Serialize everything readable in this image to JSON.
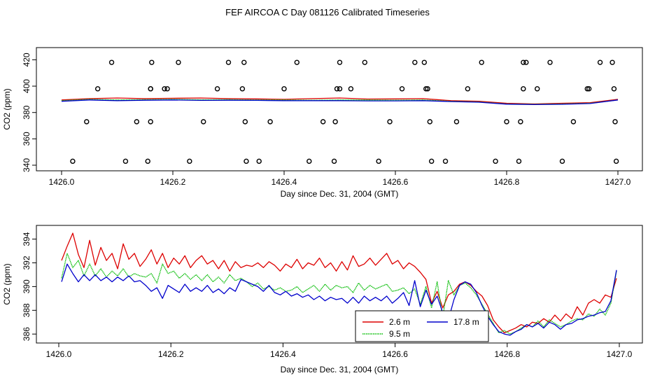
{
  "title": "FEF AIRCOA C  Day 081126  Calibrated Timeseries",
  "colors": {
    "2.6 m": "#dd0000",
    "9.5 m": "#00bb00",
    "17.8 m": "#0000cc"
  },
  "chart_data": [
    {
      "type": "line",
      "xlabel": "Day since Dec. 31, 2004 (GMT)",
      "ylabel": "CO2 (ppm)",
      "xlim": [
        1426.0,
        1427.0
      ],
      "ylim": [
        340,
        425
      ],
      "xticks": [
        1426.0,
        1426.2,
        1426.4,
        1426.6,
        1426.8,
        1427.0
      ],
      "xtick_labels": [
        "1426.0",
        "1426.2",
        "1426.4",
        "1426.6",
        "1426.8",
        "1427.0"
      ],
      "yticks": [
        340,
        360,
        380,
        400,
        420
      ],
      "ytick_labels": [
        "340",
        "360",
        "380",
        "400",
        "420"
      ],
      "series": [
        {
          "name": "2.6 m",
          "x": [
            1426.0,
            1426.05,
            1426.1,
            1426.15,
            1426.2,
            1426.25,
            1426.3,
            1426.35,
            1426.4,
            1426.45,
            1426.5,
            1426.55,
            1426.6,
            1426.65,
            1426.7,
            1426.75,
            1426.8,
            1426.85,
            1426.9,
            1426.95,
            1427.0
          ],
          "y": [
            389.5,
            390.5,
            391,
            390.5,
            390.8,
            391,
            390.5,
            390.3,
            390,
            390.5,
            391,
            390.2,
            390.3,
            390.5,
            389,
            388.5,
            387,
            386.5,
            387,
            387.5,
            390
          ]
        },
        {
          "name": "9.5 m",
          "x": [
            1426.0,
            1426.05,
            1426.1,
            1426.15,
            1426.2,
            1426.25,
            1426.3,
            1426.35,
            1426.4,
            1426.45,
            1426.5,
            1426.55,
            1426.6,
            1426.65,
            1426.7,
            1426.75,
            1426.8,
            1426.85,
            1426.9,
            1426.95,
            1427.0
          ],
          "y": [
            389,
            390,
            389.5,
            389.8,
            390,
            389.6,
            389.8,
            389.5,
            389.5,
            389.3,
            389.5,
            389.5,
            389.3,
            389.5,
            388.5,
            388,
            386.5,
            386.2,
            386.5,
            387,
            389.5
          ]
        },
        {
          "name": "17.8 m",
          "x": [
            1426.0,
            1426.05,
            1426.1,
            1426.15,
            1426.2,
            1426.25,
            1426.3,
            1426.35,
            1426.4,
            1426.45,
            1426.5,
            1426.55,
            1426.6,
            1426.65,
            1426.7,
            1426.75,
            1426.8,
            1426.85,
            1426.9,
            1426.95,
            1427.0
          ],
          "y": [
            388.5,
            389.5,
            389,
            389.3,
            389.5,
            389.2,
            389.3,
            389.2,
            389,
            389,
            389,
            388.8,
            388.8,
            389,
            388.3,
            387.8,
            386.3,
            386,
            386.2,
            386.8,
            389.5
          ]
        }
      ],
      "calibration_points": {
        "x": [
          1426.02,
          1426.045,
          1426.065,
          1426.09,
          1426.115,
          1426.135,
          1426.155,
          1426.16,
          1426.16,
          1426.16,
          1426.162,
          1426.185,
          1426.19,
          1426.21,
          1426.23,
          1426.255,
          1426.28,
          1426.3,
          1426.325,
          1426.328,
          1426.33,
          1426.332,
          1426.355,
          1426.375,
          1426.4,
          1426.423,
          1426.445,
          1426.47,
          1426.49,
          1426.492,
          1426.495,
          1426.5,
          1426.5,
          1426.52,
          1426.545,
          1426.57,
          1426.59,
          1426.612,
          1426.635,
          1426.652,
          1426.655,
          1426.658,
          1426.662,
          1426.665,
          1426.69,
          1426.71,
          1426.73,
          1426.755,
          1426.78,
          1426.8,
          1426.822,
          1426.825,
          1426.83,
          1426.83,
          1426.835,
          1426.855,
          1426.878,
          1426.9,
          1426.92,
          1426.945,
          1426.948,
          1426.968,
          1426.99,
          1426.993,
          1426.995,
          1426.997
        ],
        "y": [
          343,
          373,
          398,
          418,
          343,
          373,
          343,
          373,
          398,
          398,
          418,
          398,
          398,
          418,
          343,
          373,
          398,
          418,
          398,
          418,
          373,
          343,
          343,
          373,
          398,
          418,
          343,
          373,
          343,
          373,
          398,
          398,
          418,
          398,
          418,
          343,
          373,
          398,
          418,
          418,
          398,
          398,
          373,
          343,
          343,
          373,
          398,
          418,
          343,
          373,
          343,
          373,
          398,
          418,
          418,
          398,
          418,
          343,
          373,
          398,
          398,
          418,
          418,
          398,
          373,
          343
        ]
      }
    },
    {
      "type": "line",
      "xlabel": "Day since Dec. 31, 2004 (GMT)",
      "ylabel": "CO2 (ppm)",
      "xlim": [
        1426.0,
        1427.0
      ],
      "ylim": [
        385.6,
        394.8
      ],
      "xticks": [
        1426.0,
        1426.2,
        1426.4,
        1426.6,
        1426.8,
        1427.0
      ],
      "xtick_labels": [
        "1426.0",
        "1426.2",
        "1426.4",
        "1426.6",
        "1426.8",
        "1427.0"
      ],
      "yticks": [
        386,
        388,
        390,
        392,
        394
      ],
      "ytick_labels": [
        "386",
        "388",
        "390",
        "392",
        "394"
      ],
      "legend": {
        "placement": "bottom-center",
        "entries": [
          "2.6 m",
          "9.5 m",
          "17.8 m"
        ]
      },
      "series": [
        {
          "name": "2.6 m",
          "x": [
            1426.005,
            1426.015,
            1426.025,
            1426.035,
            1426.045,
            1426.055,
            1426.065,
            1426.075,
            1426.085,
            1426.095,
            1426.105,
            1426.115,
            1426.125,
            1426.135,
            1426.145,
            1426.155,
            1426.165,
            1426.175,
            1426.185,
            1426.195,
            1426.205,
            1426.215,
            1426.225,
            1426.235,
            1426.245,
            1426.255,
            1426.265,
            1426.275,
            1426.285,
            1426.295,
            1426.305,
            1426.315,
            1426.325,
            1426.335,
            1426.345,
            1426.355,
            1426.365,
            1426.375,
            1426.385,
            1426.395,
            1426.405,
            1426.415,
            1426.425,
            1426.435,
            1426.445,
            1426.455,
            1426.465,
            1426.475,
            1426.485,
            1426.495,
            1426.505,
            1426.515,
            1426.525,
            1426.535,
            1426.545,
            1426.555,
            1426.565,
            1426.575,
            1426.585,
            1426.595,
            1426.605,
            1426.615,
            1426.625,
            1426.635,
            1426.645,
            1426.655,
            1426.665,
            1426.675,
            1426.685,
            1426.695,
            1426.705,
            1426.715,
            1426.725,
            1426.735,
            1426.745,
            1426.755,
            1426.765,
            1426.775,
            1426.785,
            1426.795,
            1426.805,
            1426.815,
            1426.825,
            1426.835,
            1426.845,
            1426.855,
            1426.865,
            1426.875,
            1426.885,
            1426.895,
            1426.905,
            1426.915,
            1426.925,
            1426.935,
            1426.945,
            1426.955,
            1426.965,
            1426.975,
            1426.985,
            1426.995
          ],
          "y": [
            392.2,
            393.4,
            394.5,
            392.7,
            391.6,
            393.9,
            391.8,
            393.3,
            392.2,
            392.8,
            391.5,
            393.6,
            392.3,
            392.8,
            391.7,
            392.3,
            393.1,
            391.9,
            392.8,
            391.6,
            392.4,
            391.9,
            392.6,
            391.6,
            392.2,
            392.6,
            391.9,
            392.2,
            391.5,
            392.2,
            391.3,
            392.1,
            391.6,
            391.8,
            391.7,
            392,
            391.6,
            392.1,
            391.8,
            391.3,
            391.9,
            391.6,
            392.3,
            391.5,
            392,
            391.8,
            392.4,
            391.6,
            392,
            391.3,
            392.1,
            391.4,
            392.6,
            391.7,
            391.9,
            392.4,
            391.8,
            392.3,
            392.8,
            391.9,
            392.2,
            391.5,
            392,
            391.7,
            391.2,
            390.6,
            388.6,
            389.6,
            388.2,
            389.3,
            389.6,
            390.2,
            390.4,
            390.1,
            389.6,
            389.2,
            388.4,
            387.2,
            386.6,
            386.1,
            386.3,
            386.5,
            386.8,
            386.6,
            387,
            386.9,
            387.3,
            387,
            387.6,
            387.1,
            387.7,
            387.3,
            388.3,
            387.6,
            388.6,
            388.9,
            388.6,
            389.3,
            389.1,
            390.7
          ]
        },
        {
          "name": "9.5 m",
          "x": [
            1426.005,
            1426.015,
            1426.025,
            1426.035,
            1426.045,
            1426.055,
            1426.065,
            1426.075,
            1426.085,
            1426.095,
            1426.105,
            1426.115,
            1426.125,
            1426.135,
            1426.145,
            1426.155,
            1426.165,
            1426.175,
            1426.185,
            1426.195,
            1426.205,
            1426.215,
            1426.225,
            1426.235,
            1426.245,
            1426.255,
            1426.265,
            1426.275,
            1426.285,
            1426.295,
            1426.305,
            1426.315,
            1426.325,
            1426.335,
            1426.345,
            1426.355,
            1426.365,
            1426.375,
            1426.385,
            1426.395,
            1426.405,
            1426.415,
            1426.425,
            1426.435,
            1426.445,
            1426.455,
            1426.465,
            1426.475,
            1426.485,
            1426.495,
            1426.505,
            1426.515,
            1426.525,
            1426.535,
            1426.545,
            1426.555,
            1426.565,
            1426.575,
            1426.585,
            1426.595,
            1426.605,
            1426.615,
            1426.625,
            1426.635,
            1426.645,
            1426.655,
            1426.665,
            1426.675,
            1426.685,
            1426.695,
            1426.705,
            1426.715,
            1426.725,
            1426.735,
            1426.745,
            1426.755,
            1426.765,
            1426.775,
            1426.785,
            1426.795,
            1426.805,
            1426.815,
            1426.825,
            1426.835,
            1426.845,
            1426.855,
            1426.865,
            1426.875,
            1426.885,
            1426.895,
            1426.905,
            1426.915,
            1426.925,
            1426.935,
            1426.945,
            1426.955,
            1426.965,
            1426.975,
            1426.985,
            1426.995
          ],
          "y": [
            390.7,
            392.8,
            391.6,
            392.2,
            390.9,
            391.9,
            390.9,
            391.5,
            390.8,
            391.3,
            390.9,
            391.5,
            390.8,
            391.1,
            390.9,
            390.8,
            391.1,
            390.3,
            391.9,
            391.1,
            391.3,
            390.7,
            391.1,
            390.6,
            391,
            390.5,
            391,
            390.4,
            390.8,
            390.3,
            391,
            390.5,
            390.7,
            390.4,
            390,
            390.3,
            389.8,
            390,
            389.7,
            389.9,
            389.6,
            389.7,
            390,
            389.5,
            389.8,
            390.1,
            389.6,
            390.2,
            389.7,
            390.1,
            389.9,
            390,
            389.5,
            390.3,
            389.7,
            390.1,
            389.8,
            390,
            390.2,
            389.6,
            389.7,
            389.9,
            389.4,
            389.8,
            388.5,
            390,
            388.2,
            390.4,
            387.4,
            390.5,
            389.3,
            390.1,
            390.3,
            389.9,
            389.3,
            388.5,
            387.7,
            386.9,
            386.1,
            386.3,
            386,
            386.2,
            386.5,
            386.8,
            386.6,
            387.1,
            386.6,
            387.2,
            386.9,
            386.6,
            386.8,
            387.1,
            387.3,
            387.2,
            387.7,
            387.5,
            388.1,
            387.6,
            388.6,
            391.3
          ]
        },
        {
          "name": "17.8 m",
          "x": [
            1426.005,
            1426.015,
            1426.025,
            1426.035,
            1426.045,
            1426.055,
            1426.065,
            1426.075,
            1426.085,
            1426.095,
            1426.105,
            1426.115,
            1426.125,
            1426.135,
            1426.145,
            1426.155,
            1426.165,
            1426.175,
            1426.185,
            1426.195,
            1426.205,
            1426.215,
            1426.225,
            1426.235,
            1426.245,
            1426.255,
            1426.265,
            1426.275,
            1426.285,
            1426.295,
            1426.305,
            1426.315,
            1426.325,
            1426.335,
            1426.345,
            1426.355,
            1426.365,
            1426.375,
            1426.385,
            1426.395,
            1426.405,
            1426.415,
            1426.425,
            1426.435,
            1426.445,
            1426.455,
            1426.465,
            1426.475,
            1426.485,
            1426.495,
            1426.505,
            1426.515,
            1426.525,
            1426.535,
            1426.545,
            1426.555,
            1426.565,
            1426.575,
            1426.585,
            1426.595,
            1426.605,
            1426.615,
            1426.625,
            1426.635,
            1426.645,
            1426.655,
            1426.665,
            1426.675,
            1426.685,
            1426.695,
            1426.705,
            1426.715,
            1426.725,
            1426.735,
            1426.745,
            1426.755,
            1426.765,
            1426.775,
            1426.785,
            1426.795,
            1426.805,
            1426.815,
            1426.825,
            1426.835,
            1426.845,
            1426.855,
            1426.865,
            1426.875,
            1426.885,
            1426.895,
            1426.905,
            1426.915,
            1426.925,
            1426.935,
            1426.945,
            1426.955,
            1426.965,
            1426.975,
            1426.985,
            1426.995
          ],
          "y": [
            390.4,
            391.9,
            391.1,
            390.4,
            391,
            390.5,
            391,
            390.5,
            390.8,
            390.4,
            390.8,
            390.5,
            390.9,
            390.4,
            390.5,
            390.1,
            389.6,
            389.9,
            389,
            390.1,
            389.8,
            389.5,
            390.2,
            389.6,
            389.9,
            389.6,
            390.1,
            389.5,
            389.8,
            389.4,
            389.9,
            389.6,
            390.6,
            390.4,
            390.2,
            390,
            389.6,
            390.1,
            389.5,
            389.3,
            389.6,
            389.2,
            389.4,
            389.1,
            389.3,
            388.9,
            389.2,
            388.8,
            389.1,
            388.9,
            389,
            388.6,
            389.1,
            388.6,
            389.2,
            388.8,
            389.1,
            388.8,
            389.2,
            388.6,
            389,
            389.5,
            388.4,
            390.5,
            388.3,
            389.7,
            388.5,
            389.2,
            387.8,
            387.2,
            388.9,
            390.1,
            390.4,
            390.2,
            389.5,
            388.4,
            387.5,
            386.8,
            386.2,
            386,
            385.9,
            386.2,
            386.4,
            386.8,
            386.6,
            386.9,
            386.5,
            387,
            386.8,
            386.4,
            386.8,
            386.9,
            387.2,
            387.3,
            387.5,
            387.6,
            387.8,
            387.9,
            388.8,
            391.4
          ]
        }
      ]
    }
  ]
}
